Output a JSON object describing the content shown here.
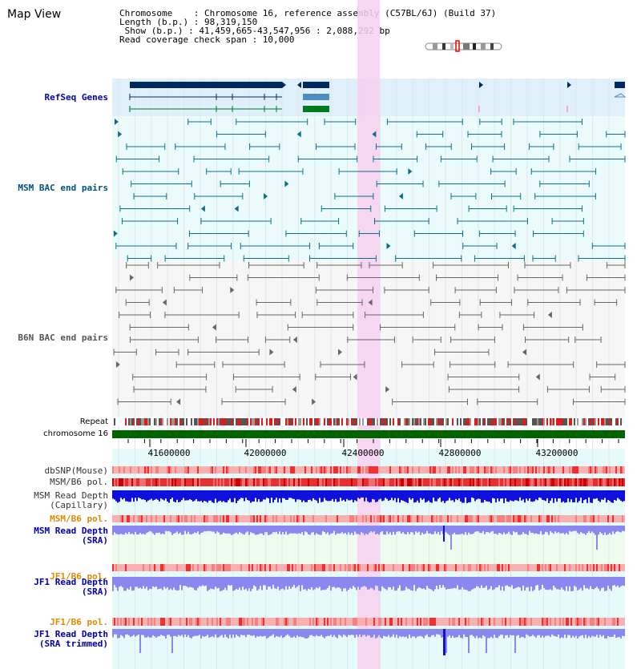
{
  "title": "Map View",
  "info": {
    "chromosome": "Chromosome    : Chromosome 16, reference assembly (C57BL/6J) (Build 37)",
    "length": "Length (b.p.) : 98,319,150",
    "show": " Show (b.p.) : 41,459,665-43,547,956 : 2,088,292 bp",
    "coverage": "Read coverage check span : 10,000"
  },
  "tracks": {
    "refseq": "RefSeq Genes",
    "msm_bac": "MSM BAC end pairs",
    "b6n_bac": "B6N BAC end pairs",
    "repeat": "Repeat",
    "chromosome": "chromosome 16",
    "dbsnp": "dbSNP(Mouse)",
    "msm_b6_pol": "MSM/B6 pol.",
    "msm_depth_cap": "MSM Read Depth\n(Capillary)",
    "msm_b6_pol_sra": "MSM/B6 pol.",
    "msm_depth_sra": "MSM Read Depth\n(SRA)",
    "jf1_b6_pol": "JF1/B6 pol.",
    "jf1_depth": "JF1 Read Depth\n(SRA)",
    "jf1_b6_pol_b": "JF1/B6 pol.",
    "jf1_depth_trim": "JF1 Read Depth\n(SRA trimmed)"
  },
  "axis": {
    "ticks": [
      "41600000",
      "42000000",
      "42400000",
      "42800000",
      "43200000"
    ]
  },
  "colors": {
    "refseq_dark": "#002a5c",
    "refseq_mid": "#4a8fbf",
    "refseq_green": "#007a1e",
    "msm_line": "#0b6f8c",
    "b6n_line": "#666666",
    "chrom_green": "#006400",
    "highlight_pink": "#f7d0f0",
    "depth_blue": "#1010dd",
    "depth_light_blue": "#8888ee",
    "pol_red": "#ee1111"
  }
}
